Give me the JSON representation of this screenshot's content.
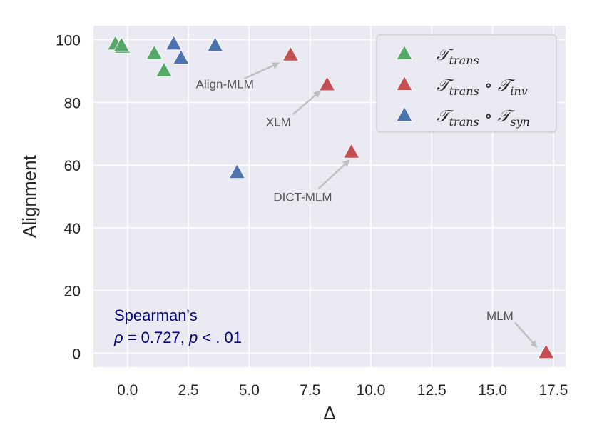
{
  "chart_data": {
    "type": "scatter",
    "xlabel": "Δ",
    "ylabel": "Alignment",
    "xlim": [
      -1.4,
      18.0
    ],
    "ylim": [
      -4.5,
      104.5
    ],
    "xticks": [
      0.0,
      2.5,
      5.0,
      7.5,
      10.0,
      12.5,
      15.0,
      17.5
    ],
    "xtick_labels": [
      "0.0",
      "2.5",
      "5.0",
      "7.5",
      "10.0",
      "12.5",
      "15.0",
      "17.5"
    ],
    "yticks": [
      0,
      20,
      40,
      60,
      80,
      100
    ],
    "ytick_labels": [
      "0",
      "20",
      "40",
      "60",
      "80",
      "100"
    ],
    "grid": true,
    "marker": "triangle-up",
    "series": [
      {
        "name": "T_trans",
        "legend_main": "𝒯",
        "legend_sub": "trans",
        "legend_suffix": [],
        "color": "#55a868",
        "points": [
          {
            "x": -0.5,
            "y": 98.5
          },
          {
            "x": -0.2,
            "y": 97.5
          },
          {
            "x": -0.25,
            "y": 98.0
          },
          {
            "x": 1.1,
            "y": 95.5
          },
          {
            "x": 1.5,
            "y": 90.0
          }
        ]
      },
      {
        "name": "T_trans ∘ T_inv",
        "legend_main": "𝒯",
        "legend_sub": "trans",
        "legend_suffix": [
          {
            "op": " ∘ ",
            "main": "𝒯",
            "sub": "inv"
          }
        ],
        "color": "#c44e52",
        "points": [
          {
            "x": 6.7,
            "y": 95.0
          },
          {
            "x": 8.2,
            "y": 85.5
          },
          {
            "x": 9.2,
            "y": 64.0
          },
          {
            "x": 17.2,
            "y": 0.0
          }
        ]
      },
      {
        "name": "T_trans ∘ T_syn",
        "legend_main": "𝒯",
        "legend_sub": "trans",
        "legend_suffix": [
          {
            "op": " ∘ ",
            "main": "𝒯",
            "sub": "syn"
          }
        ],
        "color": "#4c72b0",
        "points": [
          {
            "x": 1.9,
            "y": 98.5
          },
          {
            "x": 2.2,
            "y": 94.0
          },
          {
            "x": 3.6,
            "y": 98.0
          },
          {
            "x": 4.5,
            "y": 57.5
          }
        ]
      }
    ],
    "annotations": [
      {
        "text": "Align-MLM",
        "text_x": 4.0,
        "text_y": 84.5,
        "target_x": 6.2,
        "target_y": 92.5
      },
      {
        "text": "XLM",
        "text_x": 6.2,
        "text_y": 72.5,
        "target_x": 7.9,
        "target_y": 83.5
      },
      {
        "text": "DICT-MLM",
        "text_x": 7.2,
        "text_y": 48.5,
        "target_x": 9.1,
        "target_y": 61.5
      },
      {
        "text": "MLM",
        "text_x": 15.3,
        "text_y": 10.5,
        "target_x": 16.8,
        "target_y": 2.0
      }
    ],
    "correlation_text": {
      "line1": "Spearman's",
      "rho": "ρ",
      "rho_value": " = 0.727, ",
      "p": "p",
      "p_value": " < . 01",
      "color": "#000080"
    }
  },
  "colors": {
    "plot_background": "#eaeaf2",
    "grid": "#ffffff",
    "legend_border": "#cccccc",
    "annotation_arrow": "#bfbfbf"
  }
}
